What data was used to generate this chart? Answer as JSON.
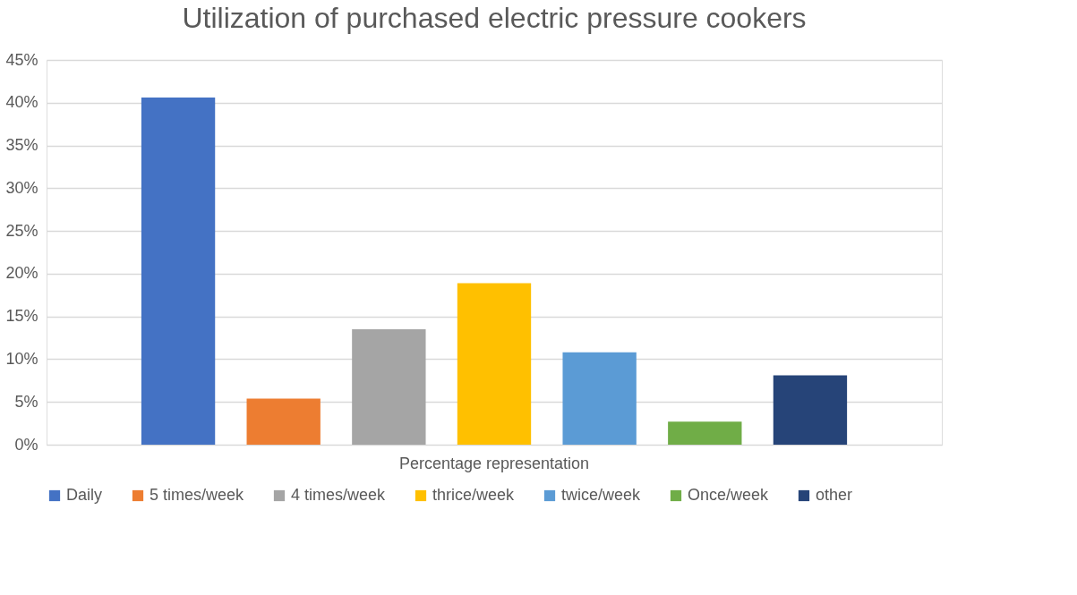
{
  "chart_data": {
    "type": "bar",
    "title": "Utilization of purchased electric pressure cookers",
    "categories": [
      "Percentage representation"
    ],
    "series": [
      {
        "name": "Daily",
        "color": "#4472c4",
        "values": [
          40.6
        ]
      },
      {
        "name": "5 times/week",
        "color": "#ed7d31",
        "values": [
          5.4
        ]
      },
      {
        "name": "4 times/week",
        "color": "#a5a5a5",
        "values": [
          13.5
        ]
      },
      {
        "name": "thrice/week",
        "color": "#ffc000",
        "values": [
          18.9
        ]
      },
      {
        "name": "twice/week",
        "color": "#5b9bd5",
        "values": [
          10.8
        ]
      },
      {
        "name": "Once/week",
        "color": "#70ad47",
        "values": [
          2.7
        ]
      },
      {
        "name": "other",
        "color": "#264478",
        "values": [
          8.1
        ]
      }
    ],
    "ylim": [
      0,
      45
    ],
    "yticks": [
      {
        "value": 0,
        "label": "0%"
      },
      {
        "value": 5,
        "label": "5%"
      },
      {
        "value": 10,
        "label": "10%"
      },
      {
        "value": 15,
        "label": "15%"
      },
      {
        "value": 20,
        "label": "20%"
      },
      {
        "value": 25,
        "label": "25%"
      },
      {
        "value": 30,
        "label": "30%"
      },
      {
        "value": 35,
        "label": "35%"
      },
      {
        "value": 40,
        "label": "40%"
      },
      {
        "value": 45,
        "label": "45%"
      }
    ],
    "grid": "y",
    "legend": "bottom"
  }
}
